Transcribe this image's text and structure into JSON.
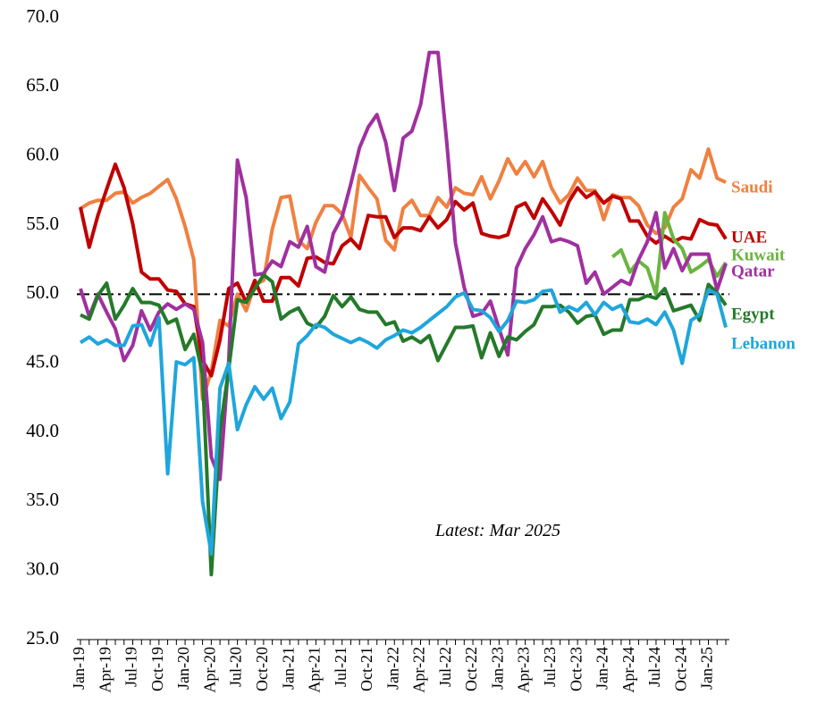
{
  "chart_data": {
    "type": "line",
    "annotation": "Latest: Mar 2025",
    "categories": [
      "Jan-19",
      null,
      null,
      "Apr-19",
      null,
      null,
      "Jul-19",
      null,
      null,
      "Oct-19",
      null,
      null,
      "Jan-20",
      null,
      null,
      "Apr-20",
      null,
      null,
      "Jul-20",
      null,
      null,
      "Oct-20",
      null,
      null,
      "Jan-21",
      null,
      null,
      "Apr-21",
      null,
      null,
      "Jul-21",
      null,
      null,
      "Oct-21",
      null,
      null,
      "Jan-22",
      null,
      null,
      "Apr-22",
      null,
      null,
      "Jul-22",
      null,
      null,
      "Oct-22",
      null,
      null,
      "Jan-23",
      null,
      null,
      "Apr-23",
      null,
      null,
      "Jul-23",
      null,
      null,
      "Oct-23",
      null,
      null,
      "Jan-24",
      null,
      null,
      "Apr-24",
      null,
      null,
      "Jul-24",
      null,
      null,
      "Oct-24",
      null,
      null,
      "Jan-25",
      null,
      null
    ],
    "ylim": [
      25,
      70
    ],
    "yticks": [
      {
        "value": 25,
        "label": "25.0"
      },
      {
        "value": 30,
        "label": "30.0"
      },
      {
        "value": 35,
        "label": "35.0"
      },
      {
        "value": 40,
        "label": "40.0"
      },
      {
        "value": 45,
        "label": "45.0"
      },
      {
        "value": 50,
        "label": "50.0"
      },
      {
        "value": 55,
        "label": "55.0"
      },
      {
        "value": 60,
        "label": "60.0"
      },
      {
        "value": 65,
        "label": "65.0"
      },
      {
        "value": 70,
        "label": "70.0"
      }
    ],
    "reference_line": 50,
    "grid": false,
    "series": [
      {
        "name": "Saudi",
        "color": "#f08040",
        "values": [
          56.2,
          56.6,
          56.8,
          56.8,
          57.3,
          57.4,
          56.6,
          57.0,
          57.3,
          57.8,
          58.3,
          56.9,
          54.9,
          52.5,
          42.4,
          44.4,
          48.1,
          47.7,
          50.0,
          48.8,
          50.7,
          51.0,
          54.7,
          57.0,
          57.1,
          53.9,
          53.3,
          55.2,
          56.4,
          56.4,
          55.8,
          54.1,
          58.6,
          57.7,
          56.9,
          53.9,
          53.2,
          56.2,
          56.8,
          55.7,
          55.7,
          57.0,
          56.3,
          57.7,
          57.3,
          57.2,
          58.5,
          56.9,
          58.2,
          59.8,
          58.7,
          59.6,
          58.5,
          59.6,
          57.7,
          56.6,
          57.2,
          58.4,
          57.5,
          57.5,
          55.4,
          57.2,
          57.0,
          57.0,
          56.4,
          55.0,
          54.4,
          54.8,
          56.3,
          56.9,
          59.0,
          58.4,
          60.5,
          58.4,
          58.1
        ]
      },
      {
        "name": "UAE",
        "color": "#c00000",
        "values": [
          56.3,
          53.4,
          55.7,
          57.6,
          59.4,
          57.7,
          55.1,
          51.6,
          51.1,
          51.1,
          50.3,
          50.2,
          49.3,
          49.1,
          45.2,
          44.1,
          46.7,
          50.4,
          50.8,
          49.4,
          51.0,
          49.5,
          49.5,
          51.2,
          51.2,
          50.6,
          52.6,
          52.7,
          52.3,
          52.2,
          53.5,
          54.0,
          53.3,
          55.7,
          55.6,
          55.6,
          54.1,
          54.8,
          54.8,
          54.6,
          55.6,
          54.8,
          55.4,
          56.7,
          56.1,
          56.6,
          54.4,
          54.2,
          54.1,
          54.3,
          56.3,
          56.6,
          55.5,
          56.9,
          56.0,
          55.0,
          56.7,
          57.7,
          57.0,
          57.4,
          56.6,
          57.1,
          56.9,
          55.3,
          55.3,
          54.2,
          53.7,
          54.2,
          53.8,
          54.1,
          54.0,
          55.4,
          55.1,
          55.0,
          54.0
        ]
      },
      {
        "name": "Kuwait",
        "color": "#6ab540",
        "values": [
          null,
          null,
          null,
          null,
          null,
          null,
          null,
          null,
          null,
          null,
          null,
          null,
          null,
          null,
          null,
          null,
          null,
          null,
          null,
          null,
          null,
          null,
          null,
          null,
          null,
          null,
          null,
          null,
          null,
          null,
          null,
          null,
          null,
          null,
          null,
          null,
          null,
          null,
          null,
          null,
          null,
          null,
          null,
          null,
          null,
          null,
          null,
          null,
          null,
          null,
          null,
          null,
          null,
          null,
          null,
          null,
          null,
          null,
          null,
          null,
          null,
          52.7,
          53.2,
          51.6,
          52.4,
          51.9,
          50.0,
          55.9,
          54.0,
          53.3,
          51.6,
          52.0,
          52.5,
          51.3,
          52.3
        ]
      },
      {
        "name": "Qatar",
        "color": "#a0309f",
        "values": [
          50.4,
          48.4,
          50.0,
          48.7,
          47.5,
          45.2,
          46.3,
          48.8,
          47.4,
          48.7,
          49.3,
          48.9,
          49.3,
          48.9,
          46.5,
          38.2,
          36.6,
          45.2,
          59.7,
          57.0,
          51.4,
          51.5,
          52.4,
          52.0,
          53.8,
          53.4,
          54.9,
          52.0,
          51.6,
          54.4,
          55.6,
          58.0,
          60.6,
          62.1,
          63.0,
          61.0,
          57.5,
          61.3,
          61.8,
          63.7,
          67.5,
          67.5,
          61.0,
          53.7,
          50.5,
          48.4,
          48.6,
          49.5,
          47.5,
          45.6,
          51.9,
          53.3,
          54.3,
          55.6,
          53.8,
          54.0,
          53.8,
          53.5,
          50.8,
          51.6,
          50.0,
          50.5,
          51.0,
          50.7,
          52.5,
          53.8,
          55.9,
          51.9,
          53.3,
          51.7,
          52.9,
          52.9,
          52.9,
          50.3,
          52.2
        ]
      },
      {
        "name": "Egypt",
        "color": "#247a2a",
        "values": [
          48.5,
          48.2,
          49.9,
          50.8,
          48.2,
          49.2,
          50.4,
          49.4,
          49.4,
          49.2,
          47.9,
          48.2,
          46.0,
          47.1,
          44.2,
          29.7,
          40.1,
          44.6,
          49.6,
          49.4,
          50.4,
          51.4,
          50.9,
          48.2,
          48.7,
          49.0,
          47.9,
          47.6,
          48.4,
          49.9,
          49.1,
          49.8,
          48.9,
          48.7,
          48.7,
          47.8,
          48.0,
          46.6,
          46.9,
          46.5,
          47.0,
          45.2,
          46.4,
          47.6,
          47.6,
          47.7,
          45.4,
          47.2,
          45.5,
          46.9,
          46.7,
          47.3,
          47.8,
          49.1,
          49.1,
          49.2,
          48.7,
          47.9,
          48.4,
          48.5,
          47.1,
          47.4,
          47.4,
          49.6,
          49.6,
          49.9,
          49.7,
          50.4,
          48.8,
          49.0,
          49.2,
          48.1,
          50.7,
          50.1,
          49.2
        ]
      },
      {
        "name": "Lebanon",
        "color": "#1fa6dc",
        "values": [
          46.5,
          46.9,
          46.4,
          46.7,
          46.3,
          46.3,
          47.7,
          47.8,
          46.3,
          48.3,
          37.0,
          45.1,
          44.9,
          45.4,
          35.0,
          31.2,
          43.2,
          45.0,
          40.2,
          42.0,
          43.3,
          42.4,
          43.2,
          41.0,
          42.2,
          46.4,
          47.0,
          47.8,
          47.6,
          47.1,
          46.8,
          46.5,
          46.8,
          46.5,
          46.1,
          46.7,
          47.0,
          47.4,
          47.2,
          47.6,
          48.1,
          48.6,
          49.1,
          49.8,
          50.1,
          48.9,
          48.8,
          48.3,
          47.3,
          48.1,
          49.5,
          49.4,
          49.6,
          50.2,
          50.3,
          48.7,
          49.1,
          48.8,
          49.4,
          48.5,
          49.4,
          48.9,
          49.2,
          48.0,
          47.9,
          48.2,
          47.8,
          48.7,
          47.4,
          45.0,
          48.1,
          48.5,
          50.3,
          50.0,
          47.6
        ]
      }
    ]
  }
}
